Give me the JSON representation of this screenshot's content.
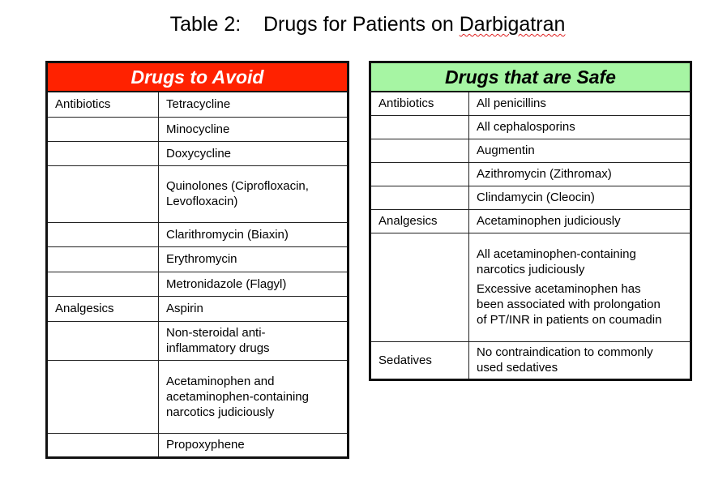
{
  "title": {
    "prefix": "Table 2:    Drugs for Patients on ",
    "misspelled_word": "Darbigatran"
  },
  "colors": {
    "avoid_header": "#ff2200",
    "safe_header": "#a6f5a3"
  },
  "avoid": {
    "header": "Drugs to Avoid",
    "rows": [
      {
        "category": "Antibiotics",
        "drug": [
          [
            "Tetracycline"
          ]
        ]
      },
      {
        "category": "",
        "drug": [
          [
            "Minocycline"
          ]
        ]
      },
      {
        "category": "",
        "drug": [
          [
            "Doxycycline"
          ]
        ]
      },
      {
        "category": "",
        "drug": [
          [
            "Quinolones (Ciprofloxacin,",
            "Levofloxacin)"
          ]
        ]
      },
      {
        "category": "",
        "drug": [
          [
            "Clarithromycin (Biaxin)"
          ]
        ]
      },
      {
        "category": "",
        "drug": [
          [
            "Erythromycin"
          ]
        ]
      },
      {
        "category": "",
        "drug": [
          [
            "Metronidazole (Flagyl)"
          ]
        ]
      },
      {
        "category": "Analgesics",
        "drug": [
          [
            "Aspirin"
          ]
        ]
      },
      {
        "category": "",
        "drug": [
          [
            "Non-steroidal anti-",
            "inflammatory drugs"
          ]
        ]
      },
      {
        "category": "",
        "drug": [
          [
            "Acetaminophen and",
            "acetaminophen-containing",
            "narcotics judiciously"
          ]
        ]
      },
      {
        "category": "",
        "drug": [
          [
            "Propoxyphene"
          ]
        ]
      }
    ]
  },
  "safe": {
    "header": "Drugs that are Safe",
    "rows": [
      {
        "category": "Antibiotics",
        "drug": [
          [
            "All penicillins"
          ]
        ]
      },
      {
        "category": "",
        "drug": [
          [
            "All cephalosporins"
          ]
        ]
      },
      {
        "category": "",
        "drug": [
          [
            "Augmentin"
          ]
        ]
      },
      {
        "category": "",
        "drug": [
          [
            "Azithromycin (Zithromax)"
          ]
        ]
      },
      {
        "category": "",
        "drug": [
          [
            "Clindamycin (Cleocin)"
          ]
        ]
      },
      {
        "category": "Analgesics",
        "drug": [
          [
            "Acetaminophen judiciously"
          ]
        ]
      },
      {
        "category": "",
        "drug": [
          [
            "All acetaminophen-containing",
            "narcotics judiciously"
          ],
          [
            "Excessive acetaminophen has",
            "been associated with prolongation",
            "of PT/INR in patients on coumadin"
          ]
        ]
      },
      {
        "category": "Sedatives",
        "drug": [
          [
            "No contraindication to commonly",
            "used sedatives"
          ]
        ]
      }
    ]
  }
}
